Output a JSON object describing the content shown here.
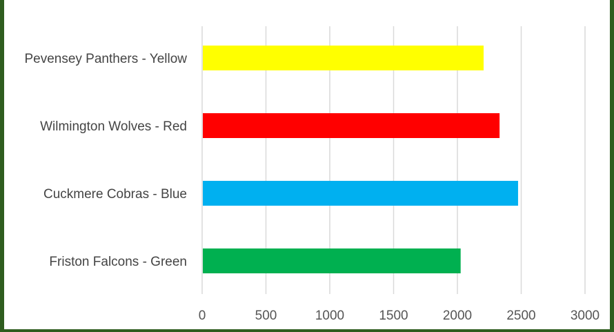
{
  "chart_data": {
    "type": "bar",
    "orientation": "horizontal",
    "title": "",
    "categories": [
      "Pevensey Panthers - Yellow",
      "Wilmington Wolves - Red",
      "Cuckmere Cobras - Blue",
      "Friston Falcons - Green"
    ],
    "values": [
      2200,
      2325,
      2470,
      2020
    ],
    "colors": [
      "#ffff00",
      "#ff0000",
      "#00b0f0",
      "#00b050"
    ],
    "xlim": [
      0,
      3000
    ],
    "xticks": [
      0,
      500,
      1000,
      1500,
      2000,
      2500,
      3000
    ],
    "grid": "vertical",
    "legend": "none"
  }
}
